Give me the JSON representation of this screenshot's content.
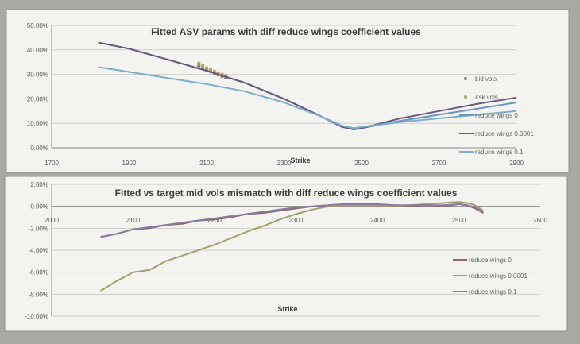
{
  "chart_data": [
    {
      "type": "line",
      "title": "Fitted ASV params with diff reduce wings coefficient values",
      "xlabel": "Strike",
      "ylabel": "",
      "xlim": [
        1700,
        2900
      ],
      "ylim": [
        0,
        0.5
      ],
      "x_ticks": [
        "1700",
        "1900",
        "2100",
        "2300",
        "2500",
        "2700",
        "2900"
      ],
      "x_tick_values": [
        1700,
        1900,
        2100,
        2300,
        2500,
        2700,
        2900
      ],
      "y_ticks": [
        "0.00%",
        "10.00%",
        "20.00%",
        "30.00%",
        "40.00%",
        "50.00%"
      ],
      "y_tick_values": [
        0,
        0.1,
        0.2,
        0.3,
        0.4,
        0.5
      ],
      "grid": true,
      "legend_position": "right",
      "series": [
        {
          "name": "bid vols",
          "style": "markers",
          "color": "#8a7a7a",
          "x": [
            2080,
            2090,
            2100,
            2110,
            2120,
            2130,
            2140,
            2150
          ],
          "y": [
            0.335,
            0.325,
            0.318,
            0.312,
            0.306,
            0.298,
            0.292,
            0.286
          ]
        },
        {
          "name": "ask vols",
          "style": "markers",
          "color": "#b0a35a",
          "x": [
            2080,
            2090,
            2100,
            2110,
            2120,
            2130,
            2140,
            2150
          ],
          "y": [
            0.345,
            0.336,
            0.326,
            0.32,
            0.312,
            0.306,
            0.3,
            0.294
          ]
        },
        {
          "name": "reduce wings 0",
          "style": "line",
          "color": "#6a96c0",
          "x": [
            1820,
            1900,
            2000,
            2100,
            2200,
            2300,
            2400,
            2450,
            2480,
            2500,
            2550,
            2600,
            2700,
            2800,
            2900
          ],
          "y": [
            0.43,
            0.405,
            0.36,
            0.315,
            0.265,
            0.2,
            0.125,
            0.085,
            0.075,
            0.08,
            0.095,
            0.11,
            0.135,
            0.16,
            0.185
          ]
        },
        {
          "name": "reduce wings 0.0001",
          "style": "line",
          "color": "#6b5a7a",
          "x": [
            1820,
            1900,
            2000,
            2100,
            2200,
            2300,
            2400,
            2450,
            2480,
            2500,
            2550,
            2600,
            2700,
            2800,
            2900
          ],
          "y": [
            0.43,
            0.405,
            0.36,
            0.315,
            0.265,
            0.2,
            0.125,
            0.085,
            0.075,
            0.08,
            0.1,
            0.12,
            0.15,
            0.18,
            0.205
          ]
        },
        {
          "name": "reduce wings 0.1",
          "style": "line",
          "color": "#7aaecc",
          "x": [
            1820,
            1900,
            2000,
            2100,
            2200,
            2300,
            2400,
            2450,
            2480,
            2500,
            2550,
            2600,
            2700,
            2800,
            2900
          ],
          "y": [
            0.33,
            0.31,
            0.285,
            0.26,
            0.23,
            0.185,
            0.125,
            0.09,
            0.08,
            0.085,
            0.095,
            0.105,
            0.12,
            0.135,
            0.15
          ]
        }
      ]
    },
    {
      "type": "line",
      "title": "Fitted vs target mid vols mismatch with diff reduce wings coefficient values",
      "xlabel": "Strike",
      "ylabel": "",
      "xlim": [
        2000,
        2600
      ],
      "ylim": [
        -0.1,
        0.02
      ],
      "x_ticks": [
        "2000",
        "2100",
        "2200",
        "2300",
        "2400",
        "2500",
        "2600"
      ],
      "x_tick_values": [
        2000,
        2100,
        2200,
        2300,
        2400,
        2500,
        2600
      ],
      "y_ticks": [
        "2.00%",
        "0.00%",
        "-2.00%",
        "-4.00%",
        "-6.00%",
        "-8.00%",
        "-10.00%"
      ],
      "y_tick_values": [
        0.02,
        0,
        -0.02,
        -0.04,
        -0.06,
        -0.08,
        -0.1
      ],
      "grid": true,
      "legend_position": "right",
      "series": [
        {
          "name": "reduce wings 0",
          "style": "line",
          "color": "#8a6a6a",
          "x": [
            2060,
            2080,
            2100,
            2120,
            2140,
            2160,
            2180,
            2200,
            2220,
            2240,
            2260,
            2280,
            2300,
            2320,
            2340,
            2360,
            2380,
            2400,
            2420,
            2440,
            2460,
            2480,
            2500,
            2510,
            2520,
            2530
          ],
          "y": [
            -0.028,
            -0.025,
            -0.021,
            -0.02,
            -0.017,
            -0.016,
            -0.013,
            -0.012,
            -0.01,
            -0.007,
            -0.006,
            -0.004,
            -0.002,
            0.0,
            0.001,
            0.002,
            0.002,
            0.001,
            0.001,
            0.0,
            0.001,
            0.0,
            0.002,
            0.001,
            -0.002,
            -0.006
          ]
        },
        {
          "name": "reduce wings 0.0001",
          "style": "line",
          "color": "#a3a070",
          "x": [
            2060,
            2080,
            2100,
            2120,
            2140,
            2160,
            2180,
            2200,
            2220,
            2240,
            2260,
            2280,
            2300,
            2320,
            2340,
            2360,
            2380,
            2400,
            2420,
            2440,
            2460,
            2480,
            2500,
            2510,
            2520,
            2530
          ],
          "y": [
            -0.077,
            -0.068,
            -0.06,
            -0.058,
            -0.05,
            -0.045,
            -0.04,
            -0.035,
            -0.029,
            -0.023,
            -0.018,
            -0.012,
            -0.007,
            -0.003,
            0.0,
            0.001,
            0.001,
            0.001,
            0.0,
            0.001,
            0.002,
            0.003,
            0.004,
            0.003,
            0.001,
            -0.004
          ]
        },
        {
          "name": "reduce wings 0.1",
          "style": "line",
          "color": "#8a7aa0",
          "x": [
            2060,
            2080,
            2100,
            2120,
            2140,
            2160,
            2180,
            2200,
            2220,
            2240,
            2260,
            2280,
            2300,
            2320,
            2340,
            2360,
            2380,
            2400,
            2420,
            2440,
            2460,
            2480,
            2500,
            2510,
            2520,
            2530
          ],
          "y": [
            -0.028,
            -0.025,
            -0.021,
            -0.019,
            -0.017,
            -0.015,
            -0.013,
            -0.011,
            -0.009,
            -0.007,
            -0.005,
            -0.003,
            -0.001,
            0.0,
            0.001,
            0.002,
            0.002,
            0.002,
            0.001,
            0.001,
            0.001,
            0.001,
            0.002,
            0.001,
            -0.001,
            -0.005
          ]
        }
      ]
    }
  ]
}
